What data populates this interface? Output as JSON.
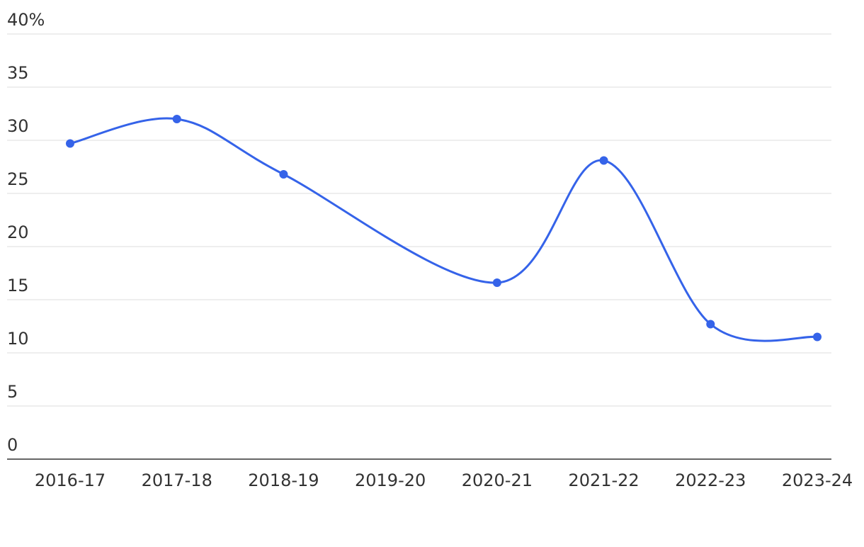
{
  "chart_data": {
    "type": "line",
    "categories": [
      "2016-17",
      "2017-18",
      "2018-19",
      "2019-20",
      "2020-21",
      "2021-22",
      "2022-23",
      "2023-24"
    ],
    "values": [
      29.7,
      32,
      26.8,
      null,
      16.6,
      28.1,
      12.7,
      11.5
    ],
    "color": "#3563e9",
    "connect_gaps": true,
    "ylim": [
      0,
      40
    ],
    "yticks": [
      0,
      5,
      10,
      15,
      20,
      25,
      30,
      35,
      {
        "value": 40,
        "label": "40%"
      }
    ],
    "grid": true
  }
}
